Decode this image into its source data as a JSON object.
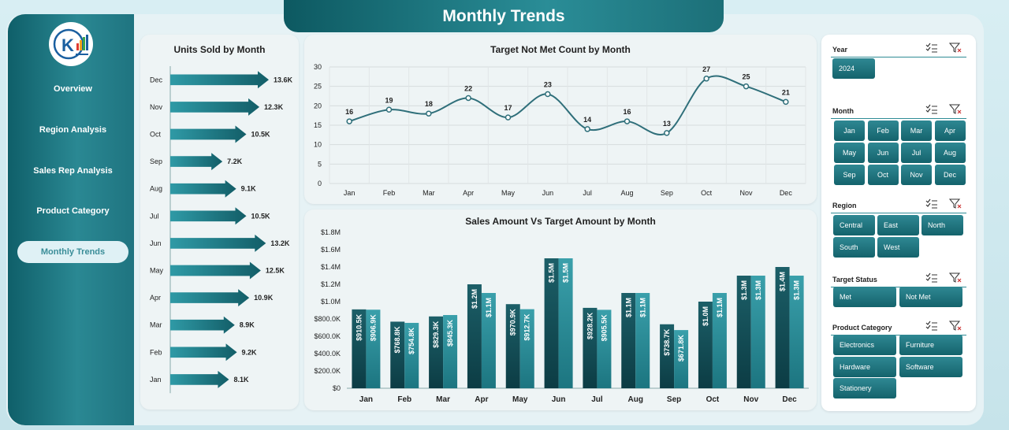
{
  "page": {
    "title": "Monthly Trends"
  },
  "sidebar": {
    "items": [
      {
        "label": "Overview",
        "active": false
      },
      {
        "label": "Region Analysis",
        "active": false
      },
      {
        "label": "Sales Rep Analysis",
        "active": false
      },
      {
        "label": "Product Category",
        "active": false
      },
      {
        "label": "Monthly Trends",
        "active": true
      }
    ]
  },
  "colors": {
    "accent": "#1f7a84",
    "accent_dark": "#0f5a62",
    "line": "#2f6f7a",
    "bg": "#cfe7ee"
  },
  "charts": {
    "units": {
      "title": "Units Sold by Month",
      "chart_data": {
        "type": "bar",
        "orientation": "horizontal",
        "categories": [
          "Dec",
          "Nov",
          "Oct",
          "Sep",
          "Aug",
          "Jul",
          "Jun",
          "May",
          "Apr",
          "Mar",
          "Feb",
          "Jan"
        ],
        "values": [
          13600,
          12300,
          10500,
          7200,
          9100,
          10500,
          13200,
          12500,
          10900,
          8900,
          9200,
          8100
        ],
        "data_labels": [
          "13.6K",
          "12.3K",
          "10.5K",
          "7.2K",
          "9.1K",
          "10.5K",
          "13.2K",
          "12.5K",
          "10.9K",
          "8.9K",
          "9.2K",
          "8.1K"
        ]
      }
    },
    "target": {
      "title": "Target Not Met Count by Month",
      "chart_data": {
        "type": "line",
        "x": [
          "Jan",
          "Feb",
          "Mar",
          "Apr",
          "May",
          "Jun",
          "Jul",
          "Aug",
          "Sep",
          "Oct",
          "Nov",
          "Dec"
        ],
        "y": [
          16,
          19,
          18,
          22,
          17,
          23,
          14,
          16,
          13,
          27,
          25,
          21
        ],
        "ylim": [
          0,
          30
        ],
        "yticks": [
          "0",
          "5",
          "10",
          "15",
          "20",
          "25",
          "30"
        ],
        "grid": true
      }
    },
    "sales": {
      "title": "Sales Amount Vs Target Amount by Month",
      "chart_data": {
        "type": "bar",
        "categories": [
          "Jan",
          "Feb",
          "Mar",
          "Apr",
          "May",
          "Jun",
          "Jul",
          "Aug",
          "Sep",
          "Oct",
          "Nov",
          "Dec"
        ],
        "series": [
          {
            "values": [
              910500,
              768800,
              829300,
              1200000,
              970900,
              1500000,
              928200,
              1100000,
              738700,
              1000000,
              1300000,
              1400000
            ],
            "labels": [
              "$910.5K",
              "$768.8K",
              "$829.3K",
              "$1.2M",
              "$970.9K",
              "$1.5M",
              "$928.2K",
              "$1.1M",
              "$738.7K",
              "$1.0M",
              "$1.3M",
              "$1.4M"
            ]
          },
          {
            "values": [
              906900,
              754800,
              845300,
              1100000,
              912700,
              1500000,
              905500,
              1100000,
              671800,
              1100000,
              1300000,
              1300000
            ],
            "labels": [
              "$906.9K",
              "$754.8K",
              "$845.3K",
              "$1.1M",
              "$912.7K",
              "$1.5M",
              "$905.5K",
              "$1.1M",
              "$671.8K",
              "$1.1M",
              "$1.3M",
              "$1.3M"
            ]
          }
        ],
        "ylim": [
          0,
          1800000
        ],
        "yticks": [
          "$0",
          "$200.0K",
          "$400.0K",
          "$600.0K",
          "$800.0K",
          "$1.0M",
          "$1.2M",
          "$1.4M",
          "$1.6M",
          "$1.8M"
        ]
      }
    }
  },
  "slicers": {
    "year": {
      "label": "Year",
      "options": [
        "2024"
      ]
    },
    "month": {
      "label": "Month",
      "options": [
        "Jan",
        "Feb",
        "Mar",
        "Apr",
        "May",
        "Jun",
        "Jul",
        "Aug",
        "Sep",
        "Oct",
        "Nov",
        "Dec"
      ]
    },
    "region": {
      "label": "Region",
      "options": [
        "Central",
        "East",
        "North",
        "South",
        "West"
      ]
    },
    "target_status": {
      "label": "Target Status",
      "options": [
        "Met",
        "Not Met"
      ]
    },
    "product_category": {
      "label": "Product Category",
      "options": [
        "Electronics",
        "Furniture",
        "Hardware",
        "Software",
        "Stationery"
      ]
    }
  }
}
